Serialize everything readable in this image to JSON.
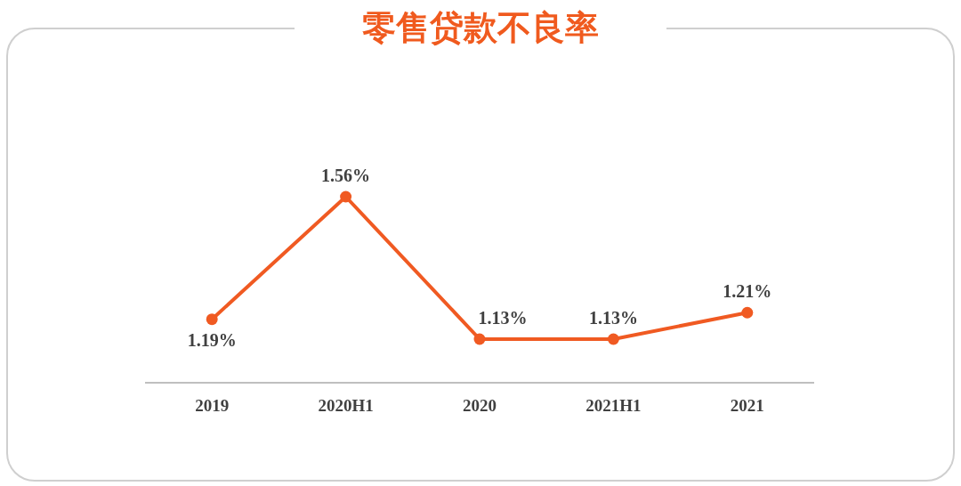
{
  "chart_data": {
    "type": "line",
    "title": "零售贷款不良率",
    "categories": [
      "2019",
      "2020H1",
      "2020",
      "2021H1",
      "2021"
    ],
    "values": [
      1.19,
      1.56,
      1.13,
      1.13,
      1.21
    ],
    "value_labels": [
      "1.19%",
      "1.56%",
      "1.13%",
      "1.13%",
      "1.21%"
    ],
    "color": "#f05a22",
    "marker": "circle",
    "line_style": "solid"
  }
}
